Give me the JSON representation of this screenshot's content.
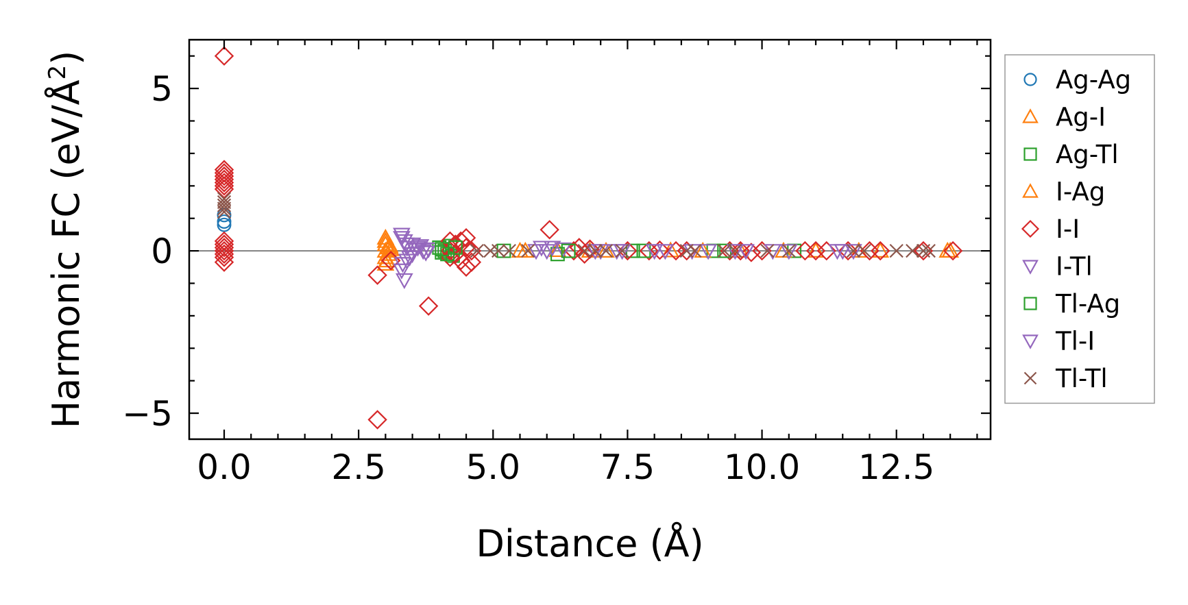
{
  "chart_data": {
    "type": "scatter",
    "title": "",
    "xlabel": "Distance (Å)",
    "ylabel": "Harmonic FC (eV/Å²)",
    "ylabel_parts": {
      "main": "Harmonic FC (eV/Å",
      "sup": "2",
      "close": ")"
    },
    "xlim": [
      -0.65,
      14.25
    ],
    "ylim": [
      -5.8,
      6.5
    ],
    "xticks": [
      0.0,
      2.5,
      5.0,
      7.5,
      10.0,
      12.5
    ],
    "xtick_labels": [
      "0.0",
      "2.5",
      "5.0",
      "7.5",
      "10.0",
      "12.5"
    ],
    "yticks": [
      -5,
      0,
      5
    ],
    "ytick_labels": [
      "−5",
      "0",
      "5"
    ],
    "reference_line_y": 0,
    "legend_position": "outside-right",
    "series": [
      {
        "name": "Ag-Ag",
        "marker": "circle",
        "color": "#1f77b4",
        "points": [
          [
            0,
            0.8
          ],
          [
            0,
            1.1
          ],
          [
            0,
            0.9
          ]
        ]
      },
      {
        "name": "Ag-I",
        "marker": "triangle-up",
        "color": "#ff7f0e",
        "points": [
          [
            3.0,
            0.4
          ],
          [
            3.0,
            0.2
          ],
          [
            3.0,
            0.0
          ],
          [
            3.0,
            -0.2
          ],
          [
            3.0,
            -0.4
          ],
          [
            3.05,
            0.1
          ],
          [
            3.05,
            -0.1
          ],
          [
            3.1,
            0.05
          ],
          [
            5.5,
            0.0
          ],
          [
            6.2,
            0.02
          ],
          [
            7.1,
            0.0
          ],
          [
            8.3,
            0.01
          ],
          [
            9.6,
            0.0
          ],
          [
            11.0,
            0.0
          ],
          [
            12.2,
            0.0
          ],
          [
            13.45,
            0.0
          ]
        ]
      },
      {
        "name": "Ag-Tl",
        "marker": "square",
        "color": "#2ca02c",
        "points": [
          [
            4.0,
            0.1
          ],
          [
            4.05,
            -0.05
          ],
          [
            4.1,
            0.0
          ],
          [
            4.2,
            0.15
          ],
          [
            4.25,
            -0.15
          ],
          [
            6.2,
            -0.1
          ],
          [
            7.6,
            0.0
          ],
          [
            9.1,
            0.0
          ],
          [
            10.6,
            0.0
          ]
        ]
      },
      {
        "name": "I-Ag",
        "marker": "triangle-up",
        "color": "#ff7f0e",
        "points": [
          [
            3.0,
            0.3
          ],
          [
            3.02,
            -0.3
          ],
          [
            3.08,
            0.15
          ],
          [
            5.6,
            0.0
          ],
          [
            6.8,
            0.0
          ],
          [
            8.9,
            0.0
          ],
          [
            10.4,
            0.0
          ],
          [
            11.8,
            0.0
          ],
          [
            13.5,
            0.0
          ]
        ]
      },
      {
        "name": "I-I",
        "marker": "diamond",
        "color": "#d62728",
        "points": [
          [
            0,
            6.0
          ],
          [
            0,
            2.5
          ],
          [
            0,
            2.4
          ],
          [
            0,
            2.3
          ],
          [
            0,
            2.2
          ],
          [
            0,
            2.1
          ],
          [
            0,
            2.0
          ],
          [
            0,
            1.9
          ],
          [
            0,
            0.3
          ],
          [
            0,
            0.2
          ],
          [
            0,
            0.1
          ],
          [
            0,
            0.0
          ],
          [
            0,
            -0.1
          ],
          [
            0,
            -0.2
          ],
          [
            0,
            -0.35
          ],
          [
            2.85,
            -5.2
          ],
          [
            2.85,
            -0.75
          ],
          [
            3.8,
            -1.7
          ],
          [
            3.1,
            -0.3
          ],
          [
            4.2,
            0.3
          ],
          [
            4.2,
            0.0
          ],
          [
            4.2,
            -0.2
          ],
          [
            4.3,
            0.2
          ],
          [
            4.3,
            -0.1
          ],
          [
            4.4,
            0.3
          ],
          [
            4.4,
            -0.3
          ],
          [
            4.5,
            0.4
          ],
          [
            4.5,
            0.1
          ],
          [
            4.5,
            -0.5
          ],
          [
            4.6,
            0.0
          ],
          [
            4.6,
            -0.35
          ],
          [
            6.05,
            0.65
          ],
          [
            6.5,
            0.0
          ],
          [
            6.6,
            0.1
          ],
          [
            6.7,
            -0.1
          ],
          [
            6.8,
            0.05
          ],
          [
            7.5,
            0.0
          ],
          [
            7.9,
            0.0
          ],
          [
            8.1,
            0.02
          ],
          [
            8.4,
            0.0
          ],
          [
            8.6,
            0.0
          ],
          [
            9.4,
            0.0
          ],
          [
            9.6,
            0.0
          ],
          [
            9.8,
            -0.05
          ],
          [
            10.0,
            0.0
          ],
          [
            10.8,
            0.0
          ],
          [
            11.0,
            0.0
          ],
          [
            11.2,
            0.0
          ],
          [
            11.6,
            0.0
          ],
          [
            12.0,
            0.0
          ],
          [
            12.2,
            0.0
          ],
          [
            13.0,
            0.0
          ],
          [
            13.55,
            0.0
          ]
        ]
      },
      {
        "name": "I-Tl",
        "marker": "triangle-down",
        "color": "#9467bd",
        "points": [
          [
            3.3,
            0.5
          ],
          [
            3.3,
            -0.6
          ],
          [
            3.35,
            0.3
          ],
          [
            3.35,
            -0.9
          ],
          [
            3.4,
            0.1
          ],
          [
            3.4,
            -0.3
          ],
          [
            3.5,
            0.2
          ],
          [
            3.5,
            -0.1
          ],
          [
            3.6,
            0.1
          ],
          [
            3.7,
            0.0
          ],
          [
            3.8,
            0.05
          ],
          [
            5.9,
            0.1
          ],
          [
            6.0,
            0.0
          ],
          [
            6.3,
            0.05
          ],
          [
            7.0,
            0.0
          ],
          [
            7.3,
            0.0
          ],
          [
            8.2,
            0.0
          ],
          [
            9.0,
            0.0
          ],
          [
            9.7,
            0.0
          ],
          [
            10.5,
            0.0
          ],
          [
            11.4,
            0.0
          ]
        ]
      },
      {
        "name": "Tl-Ag",
        "marker": "square",
        "color": "#2ca02c",
        "points": [
          [
            4.05,
            0.05
          ],
          [
            4.15,
            -0.1
          ],
          [
            4.3,
            0.1
          ],
          [
            5.2,
            0.0
          ],
          [
            6.4,
            0.0
          ],
          [
            7.8,
            0.0
          ],
          [
            9.3,
            0.0
          ]
        ]
      },
      {
        "name": "Tl-I",
        "marker": "triangle-down",
        "color": "#9467bd",
        "points": [
          [
            3.3,
            0.4
          ],
          [
            3.32,
            -0.4
          ],
          [
            3.38,
            0.2
          ],
          [
            3.45,
            -0.2
          ],
          [
            3.55,
            0.05
          ],
          [
            3.65,
            0.15
          ],
          [
            3.75,
            -0.05
          ],
          [
            5.8,
            0.0
          ],
          [
            6.1,
            0.1
          ],
          [
            6.9,
            0.0
          ],
          [
            7.4,
            0.0
          ],
          [
            8.0,
            0.0
          ],
          [
            8.7,
            0.0
          ],
          [
            9.5,
            0.0
          ],
          [
            10.2,
            0.0
          ],
          [
            11.5,
            0.0
          ],
          [
            11.7,
            0.0
          ]
        ]
      },
      {
        "name": "Tl-Tl",
        "marker": "x",
        "color": "#8c564b",
        "points": [
          [
            0,
            1.2
          ],
          [
            0,
            1.3
          ],
          [
            0,
            1.4
          ],
          [
            0,
            1.5
          ],
          [
            0,
            1.6
          ],
          [
            4.7,
            0.0
          ],
          [
            4.95,
            0.0
          ],
          [
            5.1,
            0.0
          ],
          [
            5.3,
            0.0
          ],
          [
            5.65,
            0.0
          ],
          [
            6.7,
            0.0
          ],
          [
            6.9,
            0.0
          ],
          [
            7.1,
            0.0
          ],
          [
            7.4,
            0.0
          ],
          [
            8.6,
            0.0
          ],
          [
            8.75,
            0.0
          ],
          [
            9.3,
            0.0
          ],
          [
            9.5,
            0.0
          ],
          [
            10.1,
            0.0
          ],
          [
            10.5,
            0.0
          ],
          [
            11.7,
            0.0
          ],
          [
            11.9,
            0.0
          ],
          [
            12.5,
            0.0
          ],
          [
            12.8,
            0.0
          ],
          [
            13.0,
            0.0
          ],
          [
            13.1,
            0.0
          ]
        ]
      }
    ]
  }
}
